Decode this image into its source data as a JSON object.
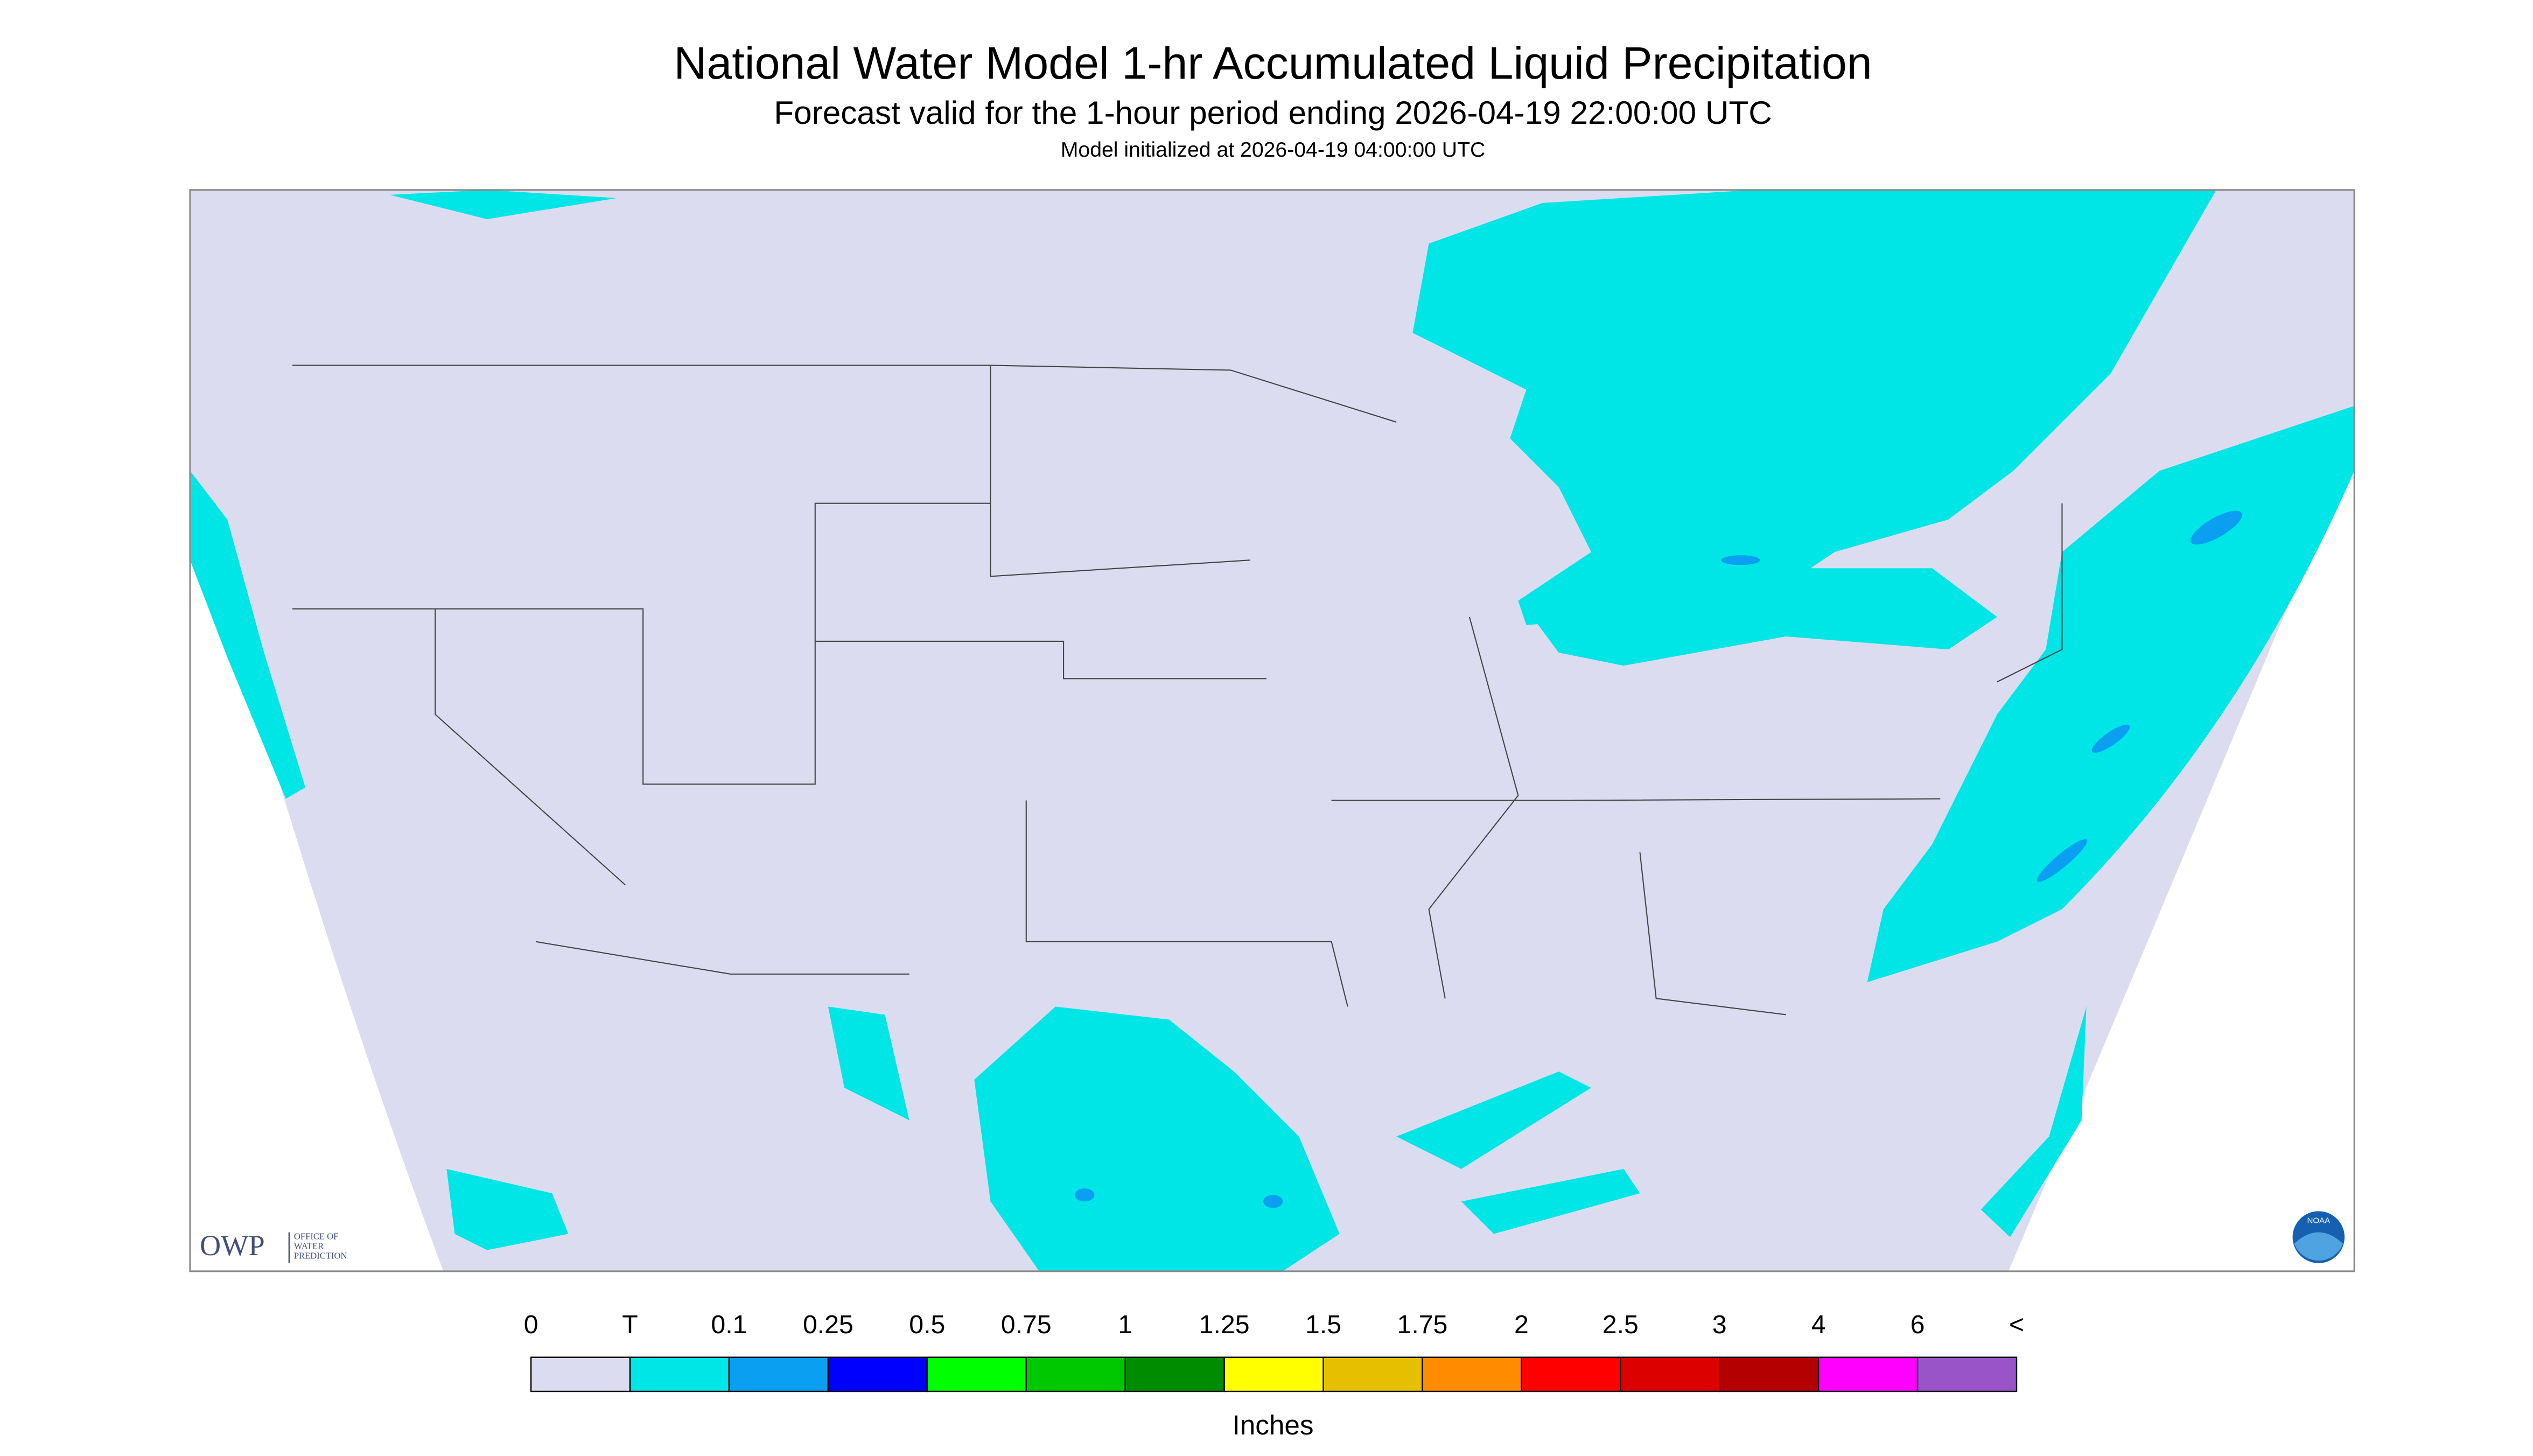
{
  "header": {
    "title": "National Water Model 1-hr Accumulated Liquid Precipitation",
    "subtitle": "Forecast valid for the 1-hour period ending 2026-04-19 22:00:00 UTC",
    "note": "Model initialized at 2026-04-19 04:00:00 UTC"
  },
  "legend": {
    "labels": [
      "0",
      "T",
      "0.1",
      "0.25",
      "0.5",
      "0.75",
      "1",
      "1.25",
      "1.5",
      "1.75",
      "2",
      "2.5",
      "3",
      "4",
      "6",
      "<"
    ],
    "colors": [
      "#dcdcf0",
      "#00e6e6",
      "#0a9ff0",
      "#0000ff",
      "#00ff00",
      "#00c800",
      "#008c00",
      "#ffff00",
      "#e6c000",
      "#ff8c00",
      "#ff0000",
      "#dc0000",
      "#b40000",
      "#ff00ff",
      "#9955c8"
    ],
    "units": "Inches"
  },
  "logos": {
    "owp": "OWP",
    "owp_line1": "OFFICE OF",
    "owp_line2": "WATER",
    "owp_line3": "PREDICTION",
    "noaa": "NOAA"
  }
}
